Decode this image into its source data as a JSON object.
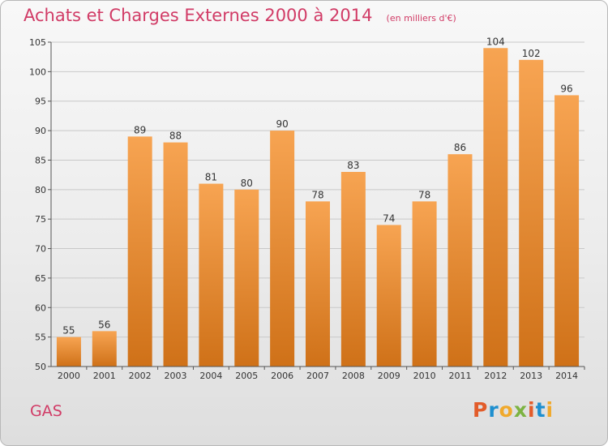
{
  "page": {
    "title": "Achats et Charges Externes 2000 à 2014",
    "subtitle": "(en milliers d'€)",
    "commune": "GAS",
    "logo": "Proxiti",
    "logo_colors": [
      "#e25c2a",
      "#1e8fcf",
      "#f0a92c",
      "#7cb342",
      "#e25c2a",
      "#1e8fcf",
      "#f0a92c"
    ]
  },
  "colors": {
    "accent": "#d13b66",
    "bar_top": "#f7a452",
    "bar_bottom": "#cf7118",
    "grid": "#c8c8c8"
  },
  "chart_data": {
    "type": "bar",
    "title": "Achats et Charges Externes 2000 à 2014",
    "subtitle": "(en milliers d'€)",
    "xlabel": "",
    "ylabel": "",
    "categories": [
      "2000",
      "2001",
      "2002",
      "2003",
      "2004",
      "2005",
      "2006",
      "2007",
      "2008",
      "2009",
      "2010",
      "2011",
      "2012",
      "2013",
      "2014"
    ],
    "values": [
      55,
      56,
      89,
      88,
      81,
      80,
      90,
      78,
      83,
      74,
      78,
      86,
      104,
      102,
      96
    ],
    "ylim": [
      50,
      105
    ],
    "yticks": [
      50,
      55,
      60,
      65,
      70,
      75,
      80,
      85,
      90,
      95,
      100,
      105
    ],
    "grid": true,
    "legend": "none",
    "data_labels": true
  }
}
